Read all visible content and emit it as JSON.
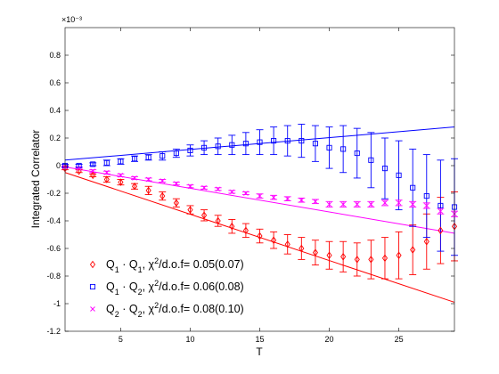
{
  "chart_data": {
    "type": "scatter",
    "title": "",
    "xlabel": "T",
    "ylabel": "Integrated Correlator",
    "exponent_label": "×10⁻³",
    "xlim": [
      1,
      29
    ],
    "ylim": [
      -1.2,
      1.0
    ],
    "xticks": [
      5,
      10,
      15,
      20,
      25
    ],
    "yticks": [
      -1.2,
      -1,
      -0.8,
      -0.6,
      -0.4,
      -0.2,
      0,
      0.2,
      0.4,
      0.6,
      0.8
    ],
    "ytick_labels": [
      "-1.2",
      "-1",
      "-0.8",
      "-0.6",
      "-0.4",
      "-0.2",
      "0",
      "0.2",
      "0.4",
      "0.6",
      "0.8"
    ],
    "xtick_labels": [
      "5",
      "10",
      "15",
      "20",
      "25"
    ],
    "grid": false,
    "legend_position": "bottom-left",
    "series": [
      {
        "name": "Q1·Q1, χ²/d.o.f= 0.05(0.07)",
        "legend_parts": [
          "Q",
          "1",
          " · Q",
          "1",
          ", χ",
          "2",
          "/d.o.f= 0.05(0.07)"
        ],
        "marker": "diamond",
        "color": "#ff0000",
        "x": [
          1,
          2,
          3,
          4,
          5,
          6,
          7,
          8,
          9,
          10,
          11,
          12,
          13,
          14,
          15,
          16,
          17,
          18,
          19,
          20,
          21,
          22,
          23,
          24,
          25,
          26,
          27,
          28,
          29
        ],
        "y": [
          -0.02,
          -0.04,
          -0.07,
          -0.1,
          -0.12,
          -0.15,
          -0.18,
          -0.22,
          -0.27,
          -0.32,
          -0.36,
          -0.4,
          -0.44,
          -0.47,
          -0.51,
          -0.54,
          -0.57,
          -0.6,
          -0.63,
          -0.65,
          -0.66,
          -0.68,
          -0.68,
          -0.67,
          -0.65,
          -0.61,
          -0.55,
          -0.47,
          -0.44
        ],
        "err": [
          0.01,
          0.01,
          0.01,
          0.02,
          0.02,
          0.02,
          0.03,
          0.03,
          0.03,
          0.03,
          0.04,
          0.04,
          0.05,
          0.05,
          0.05,
          0.06,
          0.07,
          0.08,
          0.09,
          0.1,
          0.11,
          0.12,
          0.14,
          0.15,
          0.17,
          0.18,
          0.2,
          0.24,
          0.25
        ],
        "fit": {
          "x": [
            1,
            29
          ],
          "y": [
            -0.05,
            -0.99
          ]
        }
      },
      {
        "name": "Q1·Q2, χ²/d.o.f= 0.06(0.08)",
        "legend_parts": [
          "Q",
          "1",
          " · Q",
          "2",
          ", χ",
          "2",
          "/d.o.f= 0.06(0.08)"
        ],
        "marker": "square",
        "color": "#0000ff",
        "x": [
          1,
          2,
          3,
          4,
          5,
          6,
          7,
          8,
          9,
          10,
          11,
          12,
          13,
          14,
          15,
          16,
          17,
          18,
          19,
          20,
          21,
          22,
          23,
          24,
          25,
          26,
          27,
          28,
          29
        ],
        "y": [
          0.0,
          0.0,
          0.01,
          0.02,
          0.03,
          0.05,
          0.06,
          0.07,
          0.09,
          0.11,
          0.13,
          0.14,
          0.15,
          0.16,
          0.17,
          0.18,
          0.18,
          0.18,
          0.16,
          0.13,
          0.12,
          0.09,
          0.04,
          -0.02,
          -0.07,
          -0.16,
          -0.22,
          -0.29,
          -0.3
        ],
        "err": [
          0.01,
          0.01,
          0.01,
          0.02,
          0.02,
          0.02,
          0.02,
          0.03,
          0.03,
          0.04,
          0.05,
          0.06,
          0.07,
          0.08,
          0.09,
          0.1,
          0.11,
          0.12,
          0.13,
          0.15,
          0.17,
          0.18,
          0.2,
          0.22,
          0.25,
          0.28,
          0.3,
          0.33,
          0.35
        ],
        "fit": {
          "x": [
            1,
            29
          ],
          "y": [
            0.04,
            0.28
          ]
        }
      },
      {
        "name": "Q2·Q2, χ²/d.o.f= 0.08(0.10)",
        "legend_parts": [
          "Q",
          "2",
          " · Q",
          "2",
          ", χ",
          "2",
          "/d.o.f= 0.08(0.10)"
        ],
        "marker": "cross",
        "color": "#ff00ff",
        "x": [
          1,
          2,
          3,
          4,
          5,
          6,
          7,
          8,
          9,
          10,
          11,
          12,
          13,
          14,
          15,
          16,
          17,
          18,
          19,
          20,
          21,
          22,
          23,
          24,
          25,
          26,
          27,
          28,
          29
        ],
        "y": [
          -0.01,
          -0.02,
          -0.04,
          -0.05,
          -0.07,
          -0.09,
          -0.1,
          -0.11,
          -0.13,
          -0.15,
          -0.16,
          -0.17,
          -0.19,
          -0.2,
          -0.22,
          -0.23,
          -0.24,
          -0.25,
          -0.26,
          -0.28,
          -0.28,
          -0.28,
          -0.28,
          -0.27,
          -0.27,
          -0.28,
          -0.29,
          -0.33,
          -0.35
        ],
        "err": [
          0.005,
          0.005,
          0.01,
          0.01,
          0.01,
          0.01,
          0.01,
          0.01,
          0.01,
          0.01,
          0.01,
          0.01,
          0.01,
          0.01,
          0.015,
          0.015,
          0.015,
          0.015,
          0.015,
          0.02,
          0.02,
          0.02,
          0.02,
          0.02,
          0.02,
          0.02,
          0.02,
          0.02,
          0.02
        ],
        "fit": {
          "x": [
            1,
            29
          ],
          "y": [
            -0.01,
            -0.49
          ]
        }
      }
    ]
  }
}
